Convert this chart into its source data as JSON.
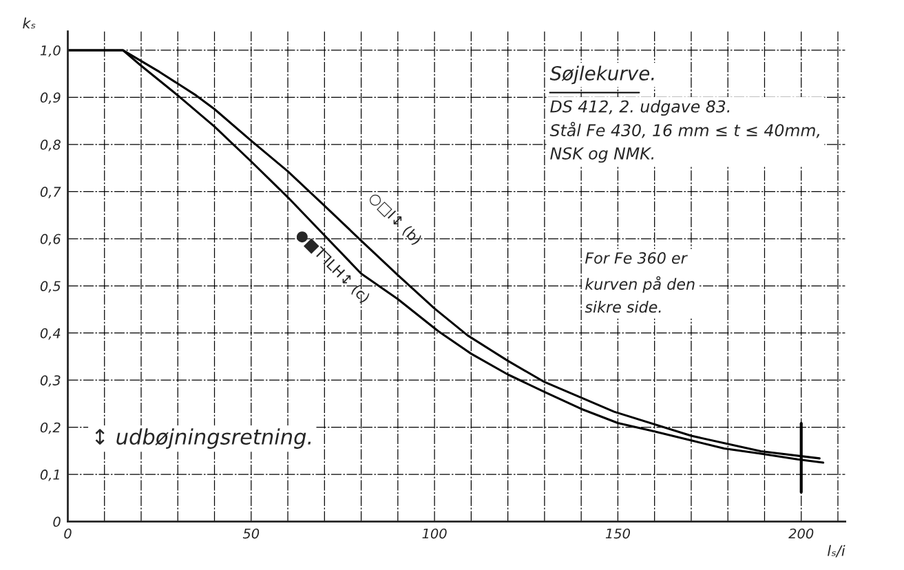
{
  "chart_data": {
    "type": "line",
    "title": "Søjlekurve.",
    "subtitle": "DS 412, 2. udgave 83.\nStål Fe 430, 16 mm ≤ t ≤ 40mm,\nNSK og NMK.",
    "xlabel": "lₛ/i",
    "ylabel": "kₛ",
    "series": [
      {
        "color": "#000000",
        "x": [
          0,
          15,
          25,
          35,
          40,
          50,
          60,
          70,
          80,
          90,
          100,
          109,
          120,
          130,
          149,
          170,
          189,
          205
        ],
        "values": [
          1.0,
          1.0,
          0.954,
          0.904,
          0.875,
          0.808,
          0.743,
          0.67,
          0.596,
          0.523,
          0.452,
          0.395,
          0.341,
          0.296,
          0.233,
          0.182,
          0.149,
          0.134
        ]
      },
      {
        "color": "#000000",
        "x": [
          0,
          15,
          20,
          30,
          40,
          50,
          60,
          70,
          80,
          90,
          101,
          110,
          120,
          130,
          140,
          150,
          160,
          170,
          179,
          189,
          199,
          206
        ],
        "values": [
          1.0,
          1.0,
          0.967,
          0.904,
          0.838,
          0.764,
          0.688,
          0.607,
          0.526,
          0.472,
          0.404,
          0.356,
          0.312,
          0.275,
          0.239,
          0.209,
          0.191,
          0.172,
          0.155,
          0.144,
          0.132,
          0.125
        ]
      }
    ],
    "annotations": [
      "○□I↕ (b)",
      "●■T⅂LH↕ (c)",
      "For Fe 360 er\nkurven på den\nsikre side.",
      "↕ udbøjningsretning."
    ],
    "ref_lines": [
      {
        "axis": "x",
        "value": 200
      }
    ],
    "xlim": [
      0,
      212
    ],
    "ylim": [
      0,
      1.04
    ],
    "xticks": [
      0,
      {
        "value": 10,
        "label": null
      },
      {
        "value": 20,
        "label": null
      },
      {
        "value": 30,
        "label": null
      },
      {
        "value": 40,
        "label": null
      },
      50,
      {
        "value": 60,
        "label": null
      },
      {
        "value": 70,
        "label": null
      },
      {
        "value": 80,
        "label": null
      },
      {
        "value": 90,
        "label": null
      },
      100,
      {
        "value": 110,
        "label": null
      },
      {
        "value": 120,
        "label": null
      },
      {
        "value": 130,
        "label": null
      },
      {
        "value": 140,
        "label": null
      },
      150,
      {
        "value": 160,
        "label": null
      },
      {
        "value": 170,
        "label": null
      },
      {
        "value": 180,
        "label": null
      },
      {
        "value": 190,
        "label": null
      },
      200,
      {
        "value": 210,
        "label": null
      }
    ],
    "yticks": [
      0,
      {
        "value": 0.1,
        "label": "0,1"
      },
      {
        "value": 0.2,
        "label": "0,2"
      },
      {
        "value": 0.3,
        "label": "0,3"
      },
      {
        "value": 0.4,
        "label": "0,4"
      },
      {
        "value": 0.5,
        "label": "0,5"
      },
      {
        "value": 0.6,
        "label": "0,6"
      },
      {
        "value": 0.7,
        "label": "0,7"
      },
      {
        "value": 0.8,
        "label": "0,8"
      },
      {
        "value": 0.9,
        "label": "0,9"
      },
      {
        "value": 1.0,
        "label": "1,0"
      }
    ],
    "grid": true,
    "marker": "none",
    "line_style": "solid"
  }
}
